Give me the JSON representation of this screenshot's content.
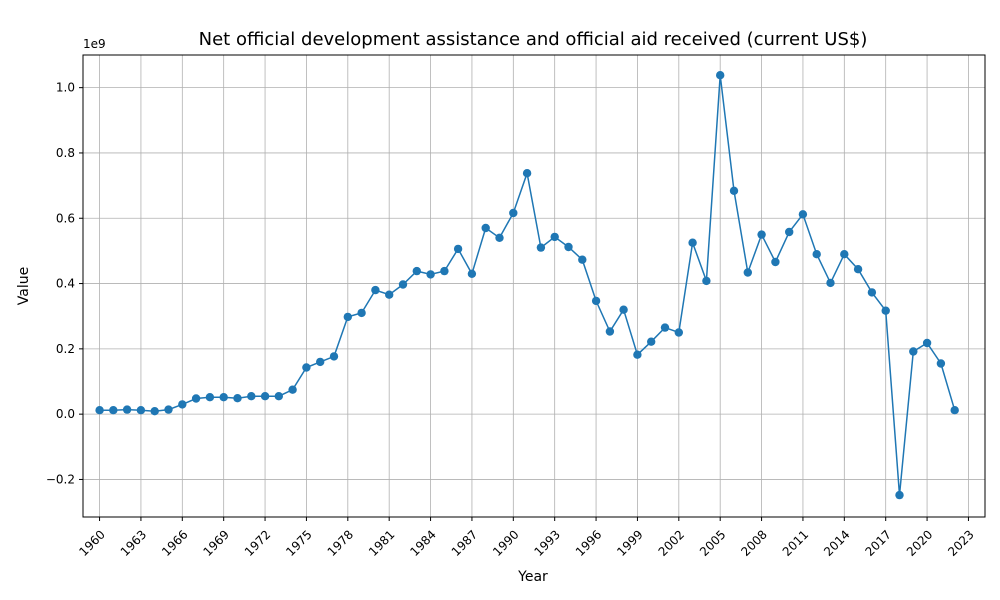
{
  "chart_data": {
    "type": "line",
    "title": "Net official development assistance and official aid received (current US$)",
    "xlabel": "Year",
    "ylabel": "Value",
    "y_multiplier_label": "1e9",
    "xlim": [
      1958.8,
      2024.2
    ],
    "ylim": [
      -0.315,
      1.1
    ],
    "x_ticks": [
      1960,
      1963,
      1966,
      1969,
      1972,
      1975,
      1978,
      1981,
      1984,
      1987,
      1990,
      1993,
      1996,
      1999,
      2002,
      2005,
      2008,
      2011,
      2014,
      2017,
      2020,
      2023
    ],
    "y_ticks": [
      -0.2,
      0.0,
      0.2,
      0.4,
      0.6,
      0.8,
      1.0
    ],
    "y_tick_labels": [
      "−0.2",
      "0.0",
      "0.2",
      "0.4",
      "0.6",
      "0.8",
      "1.0"
    ],
    "grid": true,
    "line_color": "#1f77b4",
    "marker": "circle",
    "x": [
      1960,
      1961,
      1962,
      1963,
      1964,
      1965,
      1966,
      1967,
      1968,
      1969,
      1970,
      1971,
      1972,
      1973,
      1974,
      1975,
      1976,
      1977,
      1978,
      1979,
      1980,
      1981,
      1982,
      1983,
      1984,
      1985,
      1986,
      1987,
      1988,
      1989,
      1990,
      1991,
      1992,
      1993,
      1994,
      1995,
      1996,
      1997,
      1998,
      1999,
      2000,
      2001,
      2002,
      2003,
      2004,
      2005,
      2006,
      2007,
      2008,
      2009,
      2010,
      2011,
      2012,
      2013,
      2014,
      2015,
      2016,
      2017,
      2018,
      2019,
      2020,
      2021,
      2022
    ],
    "y": [
      0.012,
      0.012,
      0.014,
      0.012,
      0.009,
      0.014,
      0.03,
      0.048,
      0.052,
      0.052,
      0.049,
      0.055,
      0.055,
      0.055,
      0.075,
      0.143,
      0.16,
      0.177,
      0.298,
      0.31,
      0.38,
      0.366,
      0.397,
      0.438,
      0.428,
      0.438,
      0.506,
      0.43,
      0.57,
      0.54,
      0.616,
      0.738,
      0.51,
      0.543,
      0.512,
      0.473,
      0.347,
      0.253,
      0.32,
      0.182,
      0.222,
      0.265,
      0.25,
      0.525,
      0.408,
      1.038,
      0.684,
      0.434,
      0.55,
      0.466,
      0.558,
      0.612,
      0.49,
      0.402,
      0.49,
      0.444,
      0.373,
      0.317,
      -0.248,
      0.192,
      0.218,
      0.155,
      0.012
    ]
  }
}
